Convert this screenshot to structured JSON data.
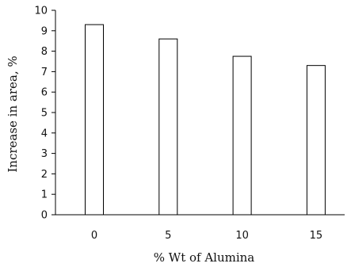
{
  "chart_data": {
    "type": "bar",
    "categories": [
      "0",
      "5",
      "10",
      "15"
    ],
    "values": [
      9.3,
      8.6,
      7.75,
      7.3
    ],
    "title": "",
    "xlabel": "% Wt of Alumina",
    "ylabel": "Increase in area, %",
    "ylim": [
      0,
      10
    ],
    "yticks": [
      "0",
      "1",
      "2",
      "3",
      "4",
      "5",
      "6",
      "7",
      "8",
      "9",
      "10"
    ],
    "grid": false,
    "legend": "none",
    "bar_fill": "#ffffff",
    "bar_stroke": "#000000"
  }
}
